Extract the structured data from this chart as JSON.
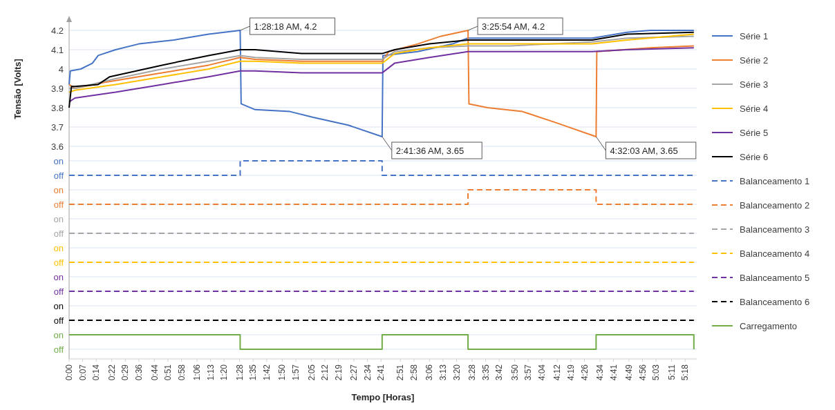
{
  "chart_data": {
    "type": "line",
    "xlabel": "Tempo [Horas]",
    "ylabel": "Tensão [Volts]",
    "xlim": [
      0,
      5.4
    ],
    "xticks": [
      {
        "value": 0,
        "label": "0:00"
      },
      {
        "value": 0.1167,
        "label": "0:07"
      },
      {
        "value": 0.2333,
        "label": "0:14"
      },
      {
        "value": 0.3667,
        "label": "0:22"
      },
      {
        "value": 0.4833,
        "label": "0:29"
      },
      {
        "value": 0.6,
        "label": "0:36"
      },
      {
        "value": 0.7333,
        "label": "0:44"
      },
      {
        "value": 0.85,
        "label": "0:51"
      },
      {
        "value": 0.9667,
        "label": "0:58"
      },
      {
        "value": 1.1,
        "label": "1:06"
      },
      {
        "value": 1.2167,
        "label": "1:13"
      },
      {
        "value": 1.3333,
        "label": "1:20"
      },
      {
        "value": 1.4667,
        "label": "1:28"
      },
      {
        "value": 1.5833,
        "label": "1:35"
      },
      {
        "value": 1.7,
        "label": "1:42"
      },
      {
        "value": 1.8333,
        "label": "1:50"
      },
      {
        "value": 1.95,
        "label": "1:57"
      },
      {
        "value": 2.0833,
        "label": "2:05"
      },
      {
        "value": 2.2,
        "label": "2:12"
      },
      {
        "value": 2.3167,
        "label": "2:19"
      },
      {
        "value": 2.45,
        "label": "2:27"
      },
      {
        "value": 2.5667,
        "label": "2:34"
      },
      {
        "value": 2.6833,
        "label": "2:41"
      },
      {
        "value": 2.85,
        "label": "2:51"
      },
      {
        "value": 2.9667,
        "label": "2:58"
      },
      {
        "value": 3.1,
        "label": "3:06"
      },
      {
        "value": 3.2167,
        "label": "3:13"
      },
      {
        "value": 3.3333,
        "label": "3:20"
      },
      {
        "value": 3.4667,
        "label": "3:28"
      },
      {
        "value": 3.5833,
        "label": "3:35"
      },
      {
        "value": 3.7,
        "label": "3:42"
      },
      {
        "value": 3.8333,
        "label": "3:50"
      },
      {
        "value": 3.95,
        "label": "3:57"
      },
      {
        "value": 4.0667,
        "label": "4:04"
      },
      {
        "value": 4.2,
        "label": "4:12"
      },
      {
        "value": 4.3167,
        "label": "4:19"
      },
      {
        "value": 4.4333,
        "label": "4:26"
      },
      {
        "value": 4.5667,
        "label": "4:34"
      },
      {
        "value": 4.6833,
        "label": "4:41"
      },
      {
        "value": 4.8167,
        "label": "4:49"
      },
      {
        "value": 4.9333,
        "label": "4:56"
      },
      {
        "value": 5.05,
        "label": "5:03"
      },
      {
        "value": 5.1833,
        "label": "5:11"
      },
      {
        "value": 5.3,
        "label": "5:18"
      }
    ],
    "ylim": [
      2.5,
      4.25
    ],
    "yticks": [
      4.2,
      4.1,
      4,
      3.9,
      3.8,
      3.7,
      3.6,
      {
        "value": 3.525,
        "label": "on"
      },
      {
        "value": 3.45,
        "label": "off"
      },
      {
        "value": 3.375,
        "label": "on"
      },
      {
        "value": 3.3,
        "label": "off"
      },
      {
        "value": 3.225,
        "label": "on"
      },
      {
        "value": 3.15,
        "label": "off"
      },
      {
        "value": 3.075,
        "label": "on"
      },
      {
        "value": 3.0,
        "label": "off"
      },
      {
        "value": 2.925,
        "label": "on"
      },
      {
        "value": 2.85,
        "label": "off"
      },
      {
        "value": 2.775,
        "label": "on"
      },
      {
        "value": 2.7,
        "label": "off"
      },
      {
        "value": 2.625,
        "label": "on"
      },
      {
        "value": 2.55,
        "label": "off"
      }
    ],
    "grid": "y",
    "legend": "right",
    "line_style": "solid",
    "series": [
      {
        "name": "Série 1",
        "color": "#4472c4",
        "x": [
          0,
          0.01,
          0.1,
          0.2,
          0.25,
          0.4,
          0.6,
          0.9,
          1.2,
          1.4717,
          1.48,
          1.6,
          1.9,
          2.1,
          2.4,
          2.693,
          2.7,
          3.0,
          3.3,
          3.43,
          3.6,
          4.0,
          4.5,
          4.6,
          4.8,
          5.0,
          5.375
        ],
        "values": [
          3.92,
          3.99,
          4.0,
          4.03,
          4.07,
          4.1,
          4.13,
          4.15,
          4.18,
          4.2,
          3.82,
          3.79,
          3.78,
          3.75,
          3.71,
          3.65,
          4.07,
          4.09,
          4.13,
          4.16,
          4.16,
          4.16,
          4.16,
          4.17,
          4.19,
          4.2,
          4.2
        ]
      },
      {
        "name": "Série 2",
        "color": "#ed7d31",
        "x": [
          0,
          0.05,
          0.3,
          0.8,
          1.2,
          1.4717,
          1.6,
          2.0,
          2.693,
          2.75,
          3.0,
          3.2,
          3.432,
          3.44,
          3.6,
          3.9,
          4.2,
          4.534,
          4.54,
          5.0,
          5.375
        ],
        "values": [
          3.92,
          3.9,
          3.93,
          3.98,
          4.02,
          4.06,
          4.05,
          4.04,
          4.04,
          4.09,
          4.13,
          4.17,
          4.2,
          3.82,
          3.8,
          3.78,
          3.72,
          3.65,
          4.09,
          4.11,
          4.12
        ]
      },
      {
        "name": "Série 3",
        "color": "#a5a5a5",
        "x": [
          0,
          0.05,
          0.4,
          0.8,
          1.2,
          1.4717,
          1.6,
          2.0,
          2.693,
          2.8,
          3.1,
          3.432,
          3.8,
          4.5,
          4.8,
          5.375
        ],
        "values": [
          3.9,
          3.9,
          3.95,
          4.0,
          4.04,
          4.07,
          4.06,
          4.05,
          4.05,
          4.09,
          4.11,
          4.12,
          4.12,
          4.14,
          4.16,
          4.17
        ]
      },
      {
        "name": "Série 4",
        "color": "#ffc000",
        "x": [
          0,
          0.05,
          0.4,
          0.8,
          1.2,
          1.4717,
          1.6,
          2.0,
          2.693,
          2.8,
          3.1,
          3.432,
          3.8,
          4.5,
          4.8,
          5.375
        ],
        "values": [
          3.88,
          3.89,
          3.92,
          3.96,
          4.0,
          4.04,
          4.04,
          4.03,
          4.03,
          4.08,
          4.11,
          4.13,
          4.13,
          4.13,
          4.15,
          4.18
        ]
      },
      {
        "name": "Série 5",
        "color": "#7030a0",
        "x": [
          0,
          0.05,
          0.4,
          0.8,
          1.2,
          1.4717,
          1.6,
          2.0,
          2.693,
          2.8,
          3.1,
          3.432,
          3.8,
          4.5,
          4.8,
          5.375
        ],
        "values": [
          3.83,
          3.85,
          3.88,
          3.92,
          3.96,
          3.99,
          3.99,
          3.98,
          3.98,
          4.03,
          4.06,
          4.09,
          4.09,
          4.09,
          4.1,
          4.11
        ]
      },
      {
        "name": "Série 6",
        "color": "#000000",
        "x": [
          0,
          0.02,
          0.05,
          0.25,
          0.35,
          0.8,
          1.2,
          1.4717,
          1.6,
          2.0,
          2.693,
          2.8,
          3.1,
          3.432,
          3.8,
          4.5,
          4.8,
          5.375
        ],
        "values": [
          3.8,
          3.91,
          3.91,
          3.92,
          3.96,
          4.02,
          4.07,
          4.1,
          4.1,
          4.08,
          4.08,
          4.1,
          4.13,
          4.15,
          4.15,
          4.15,
          4.18,
          4.19
        ]
      },
      {
        "name": "Balanceamento 1",
        "type": "step",
        "line_style": "dashed",
        "color": "#4472c4",
        "x": [
          0,
          1.4717,
          2.693,
          5.375
        ],
        "values": [
          3.45,
          3.525,
          3.45,
          3.45
        ]
      },
      {
        "name": "Balanceamento 2",
        "type": "step",
        "line_style": "dashed",
        "color": "#ed7d31",
        "x": [
          0,
          3.432,
          4.534,
          5.375
        ],
        "values": [
          3.3,
          3.375,
          3.3,
          3.3
        ]
      },
      {
        "name": "Balanceamento 3",
        "type": "step",
        "line_style": "dashed",
        "color": "#a5a5a5",
        "x": [
          0,
          5.375
        ],
        "values": [
          3.15,
          3.15
        ]
      },
      {
        "name": "Balanceamento 4",
        "type": "step",
        "line_style": "dashed",
        "color": "#ffc000",
        "x": [
          0,
          5.375
        ],
        "values": [
          3.0,
          3.0
        ]
      },
      {
        "name": "Balanceamento 5",
        "type": "step",
        "line_style": "dashed",
        "color": "#7030a0",
        "x": [
          0,
          5.375
        ],
        "values": [
          2.85,
          2.85
        ]
      },
      {
        "name": "Balanceamento 6",
        "type": "step",
        "line_style": "dashed",
        "color": "#000000",
        "x": [
          0,
          5.375
        ],
        "values": [
          2.7,
          2.7
        ]
      },
      {
        "name": "Carregamento",
        "type": "step",
        "color": "#70ad47",
        "x": [
          0,
          1.4717,
          2.693,
          3.432,
          4.534,
          5.375
        ],
        "values": [
          2.625,
          2.55,
          2.625,
          2.55,
          2.625,
          2.55
        ]
      }
    ],
    "annotations": [
      {
        "text": "1:28:18 AM, 4.2",
        "x": 1.4717,
        "y": 4.2
      },
      {
        "text": "2:41:36 AM, 3.65",
        "x": 2.693,
        "y": 3.65
      },
      {
        "text": "3:25:54 AM, 4.2",
        "x": 3.432,
        "y": 4.2
      },
      {
        "text": "4:32:03 AM, 3.65",
        "x": 4.534,
        "y": 3.65
      }
    ]
  }
}
